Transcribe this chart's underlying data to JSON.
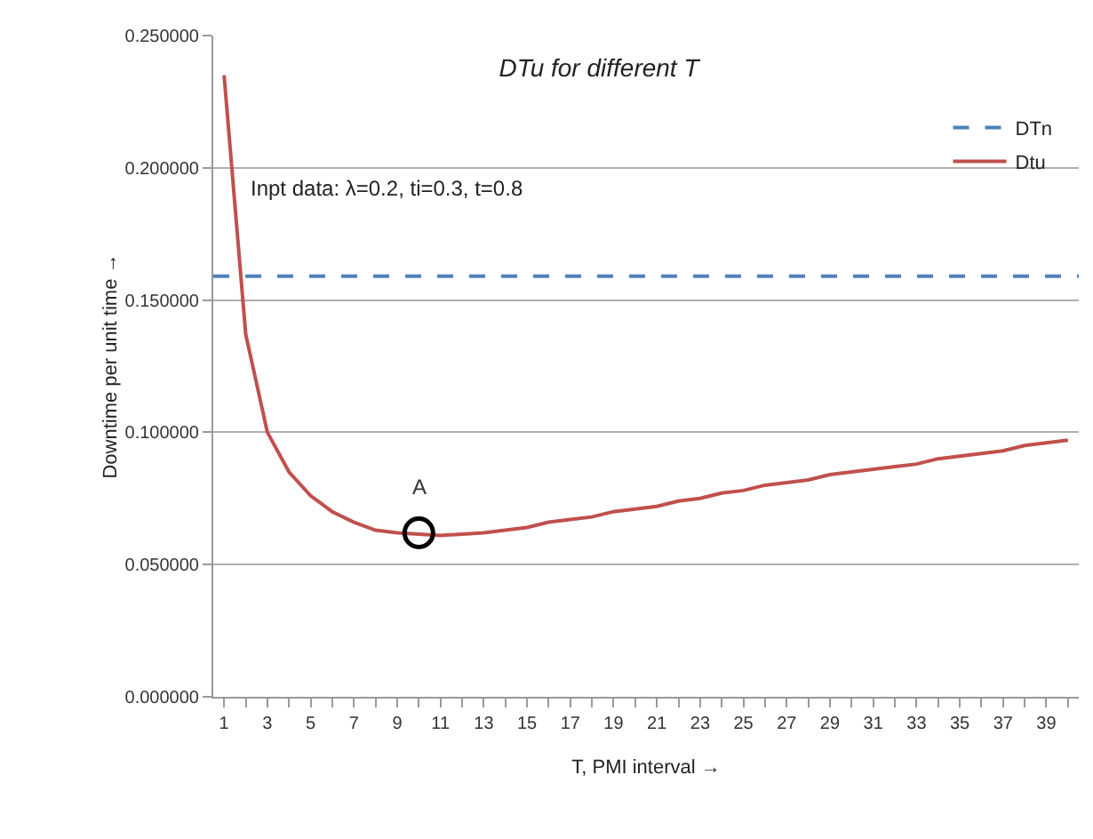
{
  "chart_data": {
    "type": "line",
    "title": "DTu for different T",
    "xlabel": "T, PMI interval →",
    "ylabel": "Downtime per unit time →",
    "annotations": [
      "Inpt data: λ=0.2, ti=0.3, t=0.8",
      {
        "text": "A",
        "x": 10,
        "y": 0.062
      }
    ],
    "x": [
      1,
      2,
      3,
      4,
      5,
      6,
      7,
      8,
      9,
      10,
      11,
      12,
      13,
      14,
      15,
      16,
      17,
      18,
      19,
      20,
      21,
      22,
      23,
      24,
      25,
      26,
      27,
      28,
      29,
      30,
      31,
      32,
      33,
      34,
      35,
      36,
      37,
      38,
      39,
      40
    ],
    "series": [
      {
        "name": "DTn",
        "color": "#4f81bd",
        "line_style": "dashed",
        "x": [
          0.5,
          40.5
        ],
        "values": [
          0.159,
          0.159
        ]
      },
      {
        "name": "Dtu",
        "color": "#c0504d",
        "line_style": "solid",
        "values": [
          0.235,
          0.137,
          0.1,
          0.085,
          0.076,
          0.07,
          0.066,
          0.063,
          0.062,
          0.0615,
          0.061,
          0.0615,
          0.062,
          0.063,
          0.064,
          0.066,
          0.067,
          0.068,
          0.07,
          0.071,
          0.072,
          0.074,
          0.075,
          0.077,
          0.078,
          0.08,
          0.081,
          0.082,
          0.084,
          0.085,
          0.086,
          0.087,
          0.088,
          0.09,
          0.091,
          0.092,
          0.093,
          0.095,
          0.096,
          0.097
        ]
      },
      {
        "type": "scatter",
        "color": "#000000",
        "marker": "circle",
        "x": [
          10
        ],
        "values": [
          0.062
        ]
      }
    ],
    "xlim": [
      0.5,
      40.5
    ],
    "xticks": [
      1,
      {
        "value": 2,
        "label": null
      },
      3,
      {
        "value": 4,
        "label": null
      },
      5,
      {
        "value": 6,
        "label": null
      },
      7,
      {
        "value": 8,
        "label": null
      },
      9,
      {
        "value": 10,
        "label": null
      },
      11,
      {
        "value": 12,
        "label": null
      },
      13,
      {
        "value": 14,
        "label": null
      },
      15,
      {
        "value": 16,
        "label": null
      },
      17,
      {
        "value": 18,
        "label": null
      },
      19,
      {
        "value": 20,
        "label": null
      },
      21,
      {
        "value": 22,
        "label": null
      },
      23,
      {
        "value": 24,
        "label": null
      },
      25,
      {
        "value": 26,
        "label": null
      },
      27,
      {
        "value": 28,
        "label": null
      },
      29,
      {
        "value": 30,
        "label": null
      },
      31,
      {
        "value": 32,
        "label": null
      },
      33,
      {
        "value": 34,
        "label": null
      },
      35,
      {
        "value": 36,
        "label": null
      },
      37,
      {
        "value": 38,
        "label": null
      },
      39,
      {
        "value": 40,
        "label": null
      }
    ],
    "ylim": [
      0,
      0.25
    ],
    "yticks": [
      {
        "value": 0,
        "label": "0.000000"
      },
      {
        "value": 0.05,
        "label": "0.050000"
      },
      {
        "value": 0.1,
        "label": "0.100000"
      },
      {
        "value": 0.15,
        "label": "0.150000"
      },
      {
        "value": 0.2,
        "label": "0.200000"
      },
      {
        "value": 0.25,
        "label": "0.250000"
      }
    ],
    "grid": "y",
    "legend": "top right",
    "marker": "none"
  }
}
